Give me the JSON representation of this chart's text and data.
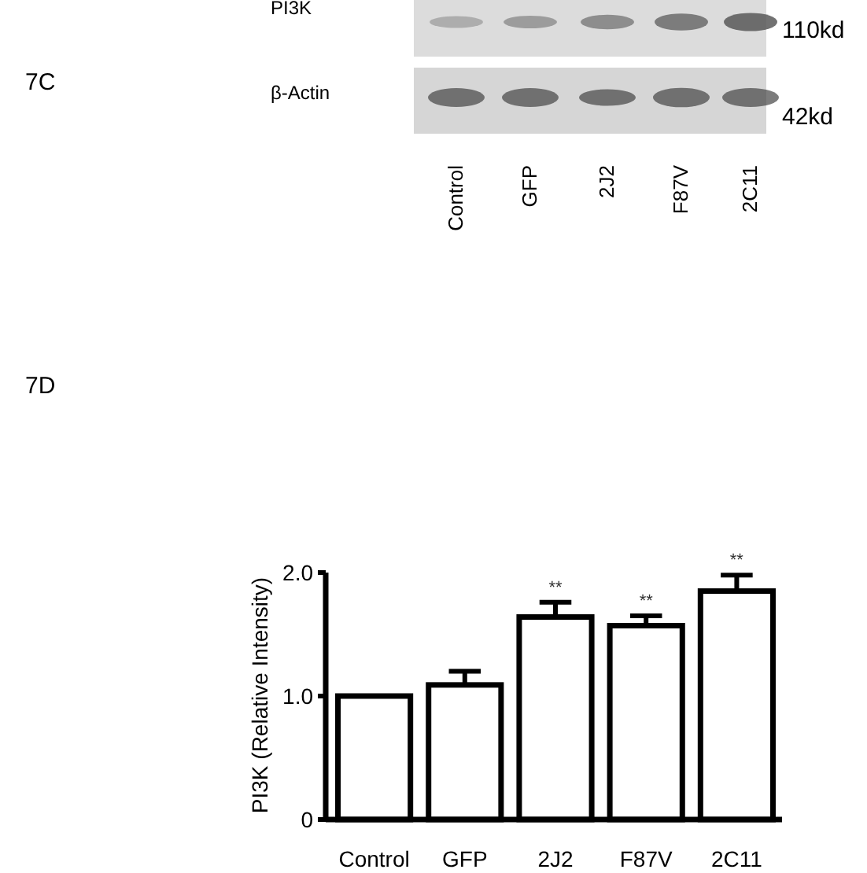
{
  "chart_data": {
    "type": "bar",
    "ylabel": "PI3K (Relative Intensity)",
    "categories": [
      "Control",
      "GFP",
      "2J2",
      "F87V",
      "2C11"
    ],
    "values": [
      1.0,
      1.09,
      1.64,
      1.57,
      1.85
    ],
    "errors": [
      null,
      0.11,
      0.12,
      0.08,
      0.13
    ],
    "color": "#ffffff",
    "ylim": [
      0,
      2.0
    ],
    "yticks": [
      0,
      {
        "value": 1,
        "label": "1.0"
      },
      {
        "value": 2,
        "label": "2.0"
      }
    ],
    "grid": false,
    "annotations": [
      "7C",
      "PI3K",
      "110kd",
      "β-Actin",
      "42kd",
      "Control",
      "GFP",
      "2J2",
      "F87V",
      "2C11",
      "7D",
      {
        "text": "**",
        "x": "2J2",
        "y": 1.76
      },
      {
        "text": "**",
        "x": "F87V",
        "y": 1.65
      },
      {
        "text": "**",
        "x": "2C11",
        "y": 1.98
      }
    ]
  }
}
